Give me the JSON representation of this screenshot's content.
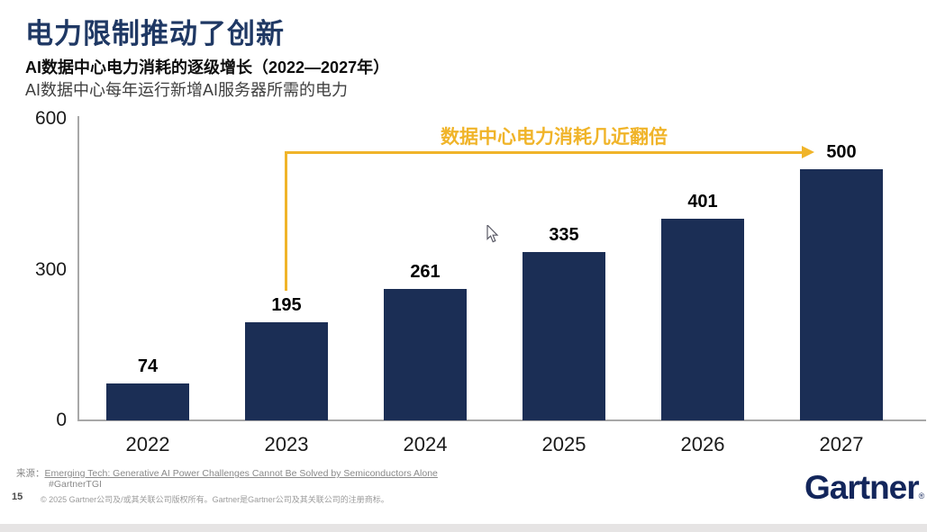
{
  "header": {
    "title": "电力限制推动了创新",
    "subtitle_bold": "AI数据中心电力消耗的逐级增长（2022—2027年）",
    "subtitle_light": "AI数据中心每年运行新增AI服务器所需的电力"
  },
  "chart_data": {
    "type": "bar",
    "categories": [
      "2022",
      "2023",
      "2024",
      "2025",
      "2026",
      "2027"
    ],
    "values": [
      74,
      195,
      261,
      335,
      401,
      500
    ],
    "title": "AI数据中心电力消耗的逐级增长（2022—2027年）",
    "xlabel": "",
    "ylabel": "",
    "ylim": [
      0,
      600
    ],
    "yticks": [
      0,
      300,
      600
    ],
    "grid": false,
    "legend": "none",
    "bar_color": "#1B2E55",
    "annotation": {
      "text": "数据中心电力消耗几近翻倍",
      "color": "#F0B429",
      "from_category": "2023",
      "to_category": "2027"
    }
  },
  "colors": {
    "title_navy": "#1F3864",
    "bar_navy": "#1B2E55",
    "gold": "#F0B429",
    "axis_gray": "#a8a8a8",
    "logo_navy": "#13265B"
  },
  "footer": {
    "source_label": "来源：",
    "source_link": "Emerging Tech: Generative AI Power Challenges Cannot Be Solved by Semiconductors Alone",
    "hashtag": "#GartnerTGI",
    "page_number": "15",
    "copyright": "© 2025 Gartner公司及/或其关联公司版权所有。Gartner是Gartner公司及其关联公司的注册商标。",
    "logo_text": "Gartner",
    "logo_reg": "®"
  }
}
